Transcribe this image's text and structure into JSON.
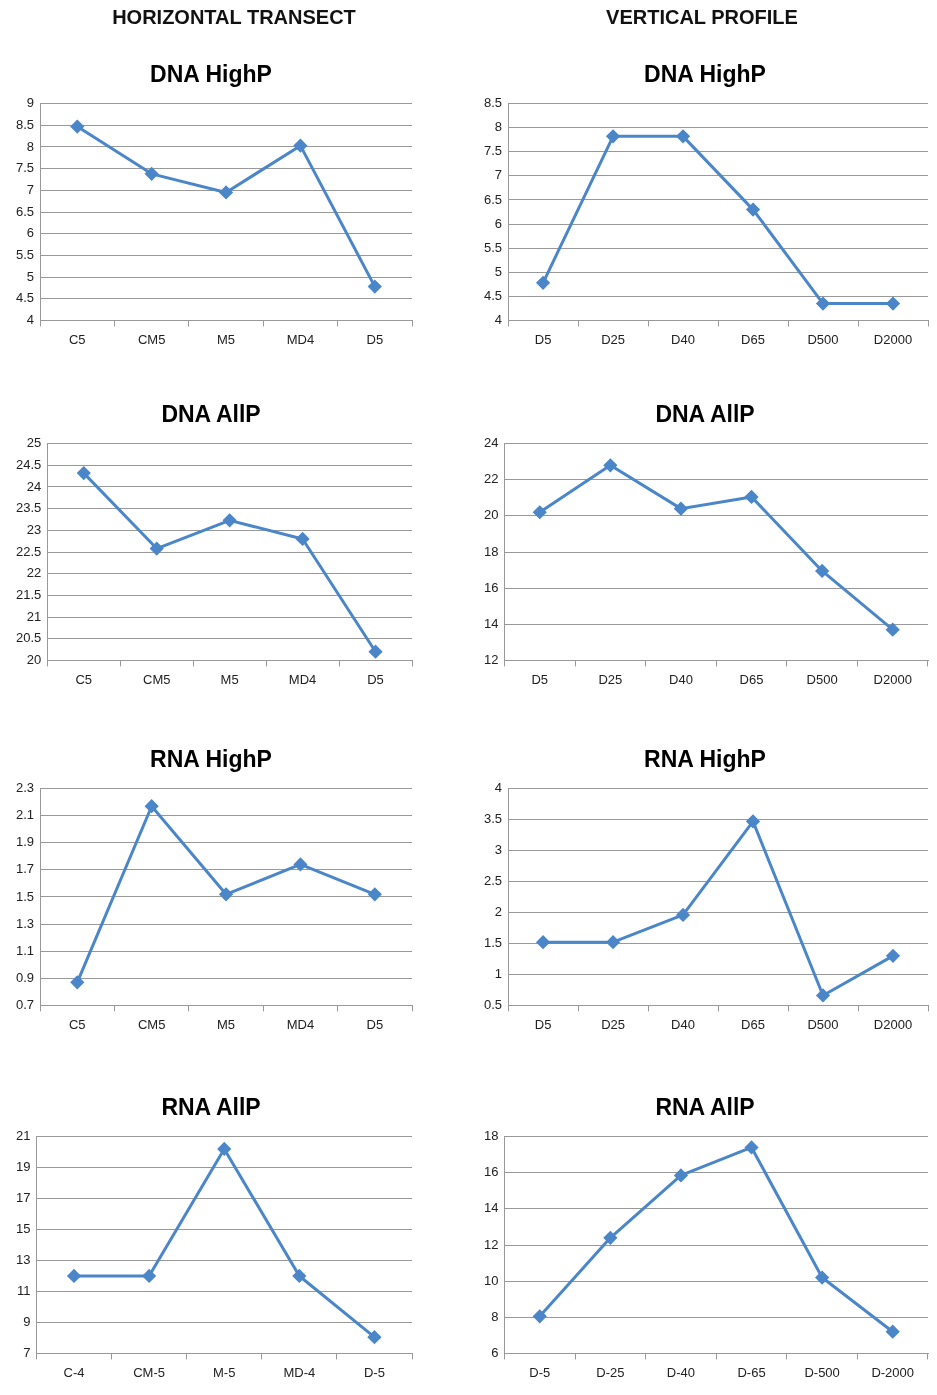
{
  "chart_data": [
    {
      "type": "line",
      "annotations": [
        "HORIZONTAL TRANSECT"
      ],
      "title": "DNA HighP",
      "categories": [
        "C5",
        "CM5",
        "M5",
        "MD4",
        "D5"
      ],
      "series": [
        {
          "color": "#4a86c8",
          "values": [
            8.47,
            7.38,
            6.95,
            8.03,
            4.78
          ]
        }
      ],
      "ylim": [
        4,
        9
      ],
      "yticks": [
        4,
        4.5,
        5,
        5.5,
        6,
        6.5,
        7,
        7.5,
        8,
        8.5,
        9
      ],
      "grid": "y",
      "legend": false,
      "marker": "diamond"
    },
    {
      "type": "line",
      "annotations": [
        "VERTICAL PROFILE"
      ],
      "title": "DNA HighP",
      "categories": [
        "D5",
        "D25",
        "D40",
        "D65",
        "D500",
        "D2000"
      ],
      "series": [
        {
          "color": "#4a86c8",
          "values": [
            4.78,
            7.82,
            7.82,
            6.3,
            4.35,
            4.35
          ]
        }
      ],
      "ylim": [
        4,
        8.5
      ],
      "yticks": [
        4,
        4.5,
        5,
        5.5,
        6,
        6.5,
        7,
        7.5,
        8,
        8.5
      ],
      "grid": "y",
      "legend": false,
      "marker": "diamond"
    },
    {
      "type": "line",
      "title": "DNA AllP",
      "categories": [
        "C5",
        "CM5",
        "M5",
        "MD4",
        "D5"
      ],
      "series": [
        {
          "color": "#4a86c8",
          "values": [
            24.32,
            22.58,
            23.23,
            22.8,
            20.2
          ]
        }
      ],
      "ylim": [
        20,
        25
      ],
      "yticks": [
        20,
        20.5,
        21,
        21.5,
        22,
        22.5,
        23,
        23.5,
        24,
        24.5,
        25
      ],
      "grid": "y",
      "legend": false,
      "marker": "diamond"
    },
    {
      "type": "line",
      "title": "DNA AllP",
      "categories": [
        "D5",
        "D25",
        "D40",
        "D65",
        "D500",
        "D2000"
      ],
      "series": [
        {
          "color": "#4a86c8",
          "values": [
            20.2,
            22.8,
            20.4,
            21.05,
            16.95,
            13.7
          ]
        }
      ],
      "ylim": [
        12,
        24
      ],
      "yticks": [
        12,
        14,
        16,
        18,
        20,
        22,
        24
      ],
      "grid": "y",
      "legend": false,
      "marker": "diamond"
    },
    {
      "type": "line",
      "title": "RNA HighP",
      "categories": [
        "C5",
        "CM5",
        "M5",
        "MD4",
        "D5"
      ],
      "series": [
        {
          "color": "#4a86c8",
          "values": [
            0.87,
            2.17,
            1.52,
            1.74,
            1.52
          ]
        }
      ],
      "ylim": [
        0.7,
        2.3
      ],
      "yticks": [
        0.7,
        0.9,
        1.1,
        1.3,
        1.5,
        1.7,
        1.9,
        2.1,
        2.3
      ],
      "grid": "y",
      "legend": false,
      "marker": "diamond"
    },
    {
      "type": "line",
      "title": "RNA HighP",
      "categories": [
        "D5",
        "D25",
        "D40",
        "D65",
        "D500",
        "D2000"
      ],
      "series": [
        {
          "color": "#4a86c8",
          "values": [
            1.52,
            1.52,
            1.96,
            3.47,
            0.66,
            1.3
          ]
        }
      ],
      "ylim": [
        0.5,
        4
      ],
      "yticks": [
        0.5,
        1,
        1.5,
        2,
        2.5,
        3,
        3.5,
        4
      ],
      "grid": "y",
      "legend": false,
      "marker": "diamond"
    },
    {
      "type": "line",
      "title": "RNA AllP",
      "categories": [
        "C-4",
        "CM-5",
        "M-5",
        "MD-4",
        "D-5"
      ],
      "series": [
        {
          "color": "#4a86c8",
          "values": [
            12,
            12,
            20.2,
            12,
            8.05
          ]
        }
      ],
      "ylim": [
        7,
        21
      ],
      "yticks": [
        7,
        9,
        11,
        13,
        15,
        17,
        19,
        21
      ],
      "grid": "y",
      "legend": false,
      "marker": "diamond"
    },
    {
      "type": "line",
      "title": "RNA AllP",
      "categories": [
        "D-5",
        "D-25",
        "D-40",
        "D-65",
        "D-500",
        "D-2000"
      ],
      "series": [
        {
          "color": "#4a86c8",
          "values": [
            8.05,
            12.4,
            15.85,
            17.4,
            10.2,
            7.2
          ]
        }
      ],
      "ylim": [
        6,
        18
      ],
      "yticks": [
        6,
        8,
        10,
        12,
        14,
        16,
        18
      ],
      "grid": "y",
      "legend": false,
      "marker": "diamond"
    }
  ]
}
